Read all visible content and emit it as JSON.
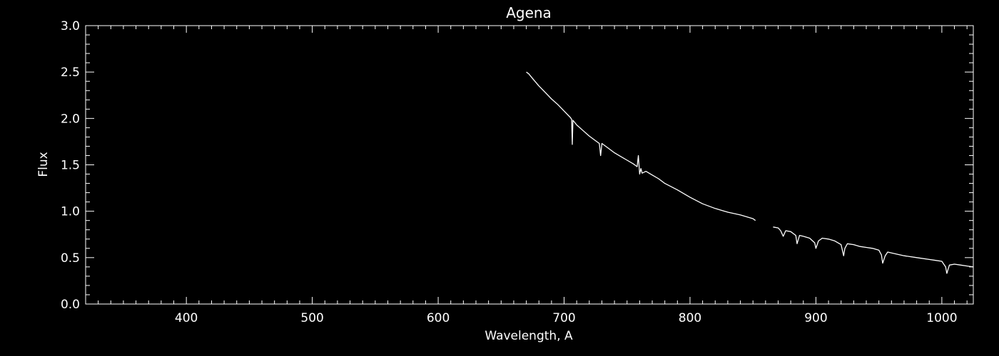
{
  "chart_data": {
    "type": "line",
    "title": "Agena",
    "xlabel": "Wavelength, A",
    "ylabel": "Flux",
    "xlim": [
      320,
      1025
    ],
    "ylim": [
      0.0,
      3.0
    ],
    "xticks": [
      400,
      500,
      600,
      700,
      800,
      900,
      1000
    ],
    "xtick_labels": [
      "400",
      "500",
      "600",
      "700",
      "800",
      "900",
      "1000"
    ],
    "yticks": [
      0.0,
      0.5,
      1.0,
      1.5,
      2.0,
      2.5,
      3.0
    ],
    "ytick_labels": [
      "0.0",
      "0.5",
      "1.0",
      "1.5",
      "2.0",
      "2.5",
      "3.0"
    ],
    "grid": false,
    "colors": {
      "background": "#000000",
      "foreground": "#ffffff"
    },
    "series": [
      {
        "x": [
          670,
          672,
          675,
          680,
          685,
          690,
          695,
          700,
          705,
          706,
          706.5,
          707,
          710,
          715,
          720,
          725,
          728,
          729,
          730,
          735,
          740,
          745,
          750,
          755,
          758,
          759,
          760,
          761,
          762,
          765,
          770,
          775,
          780,
          790,
          800,
          810,
          820,
          830,
          840,
          845,
          850,
          852
        ],
        "y": [
          2.5,
          2.48,
          2.43,
          2.35,
          2.28,
          2.21,
          2.15,
          2.08,
          2.01,
          1.99,
          1.72,
          1.98,
          1.93,
          1.87,
          1.81,
          1.76,
          1.73,
          1.6,
          1.73,
          1.68,
          1.63,
          1.59,
          1.55,
          1.51,
          1.48,
          1.6,
          1.4,
          1.46,
          1.41,
          1.43,
          1.39,
          1.35,
          1.3,
          1.23,
          1.15,
          1.08,
          1.03,
          0.99,
          0.96,
          0.94,
          0.92,
          0.9
        ]
      },
      {
        "x": [
          866,
          870,
          872,
          874,
          876,
          880,
          884,
          885,
          887,
          890,
          895,
          899,
          900,
          902,
          905,
          910,
          915,
          920,
          922,
          923,
          925,
          930,
          935,
          940,
          945,
          950,
          952,
          953,
          955,
          957,
          960,
          970,
          980,
          990,
          995,
          1000,
          1003,
          1004,
          1006,
          1010,
          1015,
          1020,
          1025
        ],
        "y": [
          0.83,
          0.82,
          0.79,
          0.73,
          0.79,
          0.78,
          0.74,
          0.65,
          0.74,
          0.73,
          0.71,
          0.66,
          0.6,
          0.68,
          0.71,
          0.7,
          0.68,
          0.64,
          0.52,
          0.6,
          0.65,
          0.64,
          0.62,
          0.61,
          0.6,
          0.58,
          0.53,
          0.44,
          0.52,
          0.56,
          0.55,
          0.52,
          0.5,
          0.48,
          0.47,
          0.46,
          0.4,
          0.33,
          0.42,
          0.43,
          0.42,
          0.41,
          0.4
        ]
      }
    ]
  }
}
